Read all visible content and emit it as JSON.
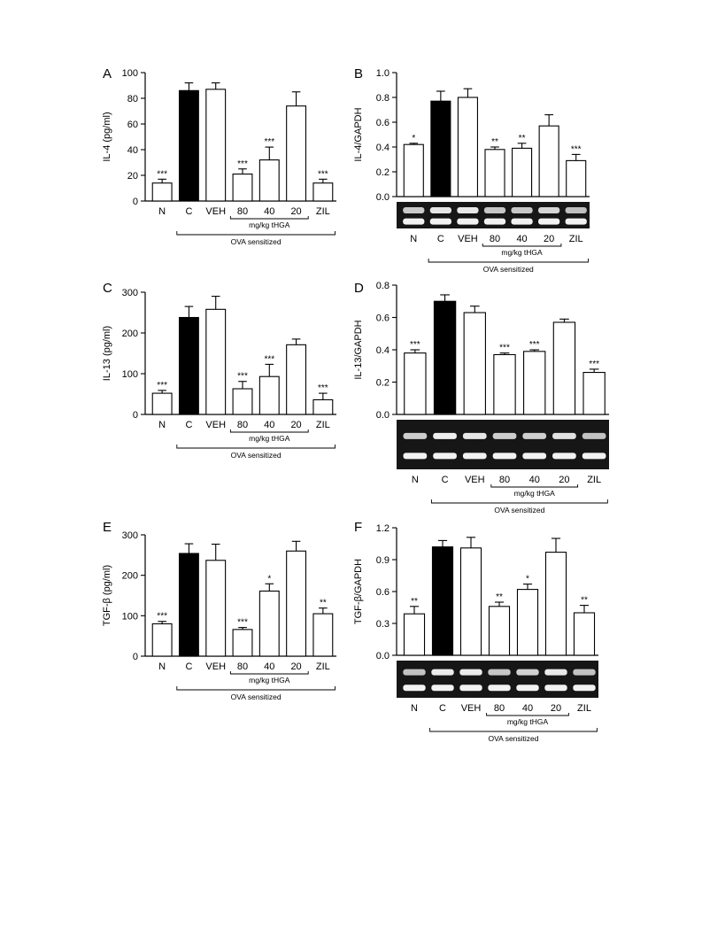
{
  "chart_data": [
    {
      "type": "bar",
      "panel": "A",
      "categories": [
        "N",
        "C",
        "VEH",
        "80",
        "40",
        "20",
        "ZIL"
      ],
      "values": [
        14,
        86,
        87,
        21,
        32,
        74,
        14
      ],
      "errors": [
        3,
        6,
        5,
        4,
        10,
        11,
        3
      ],
      "significance": [
        "***",
        "",
        "",
        "***",
        "***",
        "",
        "***"
      ],
      "filled": [
        false,
        true,
        false,
        false,
        false,
        false,
        false
      ],
      "ylabel": "IL-4 (pg/ml)",
      "ylim": [
        0,
        100
      ],
      "yticks": [
        "0",
        "20",
        "40",
        "60",
        "80",
        "100"
      ],
      "dose_label": "mg/kg tHGA",
      "group_label": "OVA sensitized",
      "gel": false
    },
    {
      "type": "bar",
      "panel": "B",
      "categories": [
        "N",
        "C",
        "VEH",
        "80",
        "40",
        "20",
        "ZIL"
      ],
      "values": [
        0.42,
        0.77,
        0.8,
        0.38,
        0.39,
        0.57,
        0.29
      ],
      "errors": [
        0.01,
        0.08,
        0.07,
        0.02,
        0.04,
        0.09,
        0.05
      ],
      "significance": [
        "*",
        "",
        "",
        "**",
        "**",
        "",
        "***"
      ],
      "filled": [
        false,
        true,
        false,
        false,
        false,
        false,
        false
      ],
      "ylabel": "IL-4/GAPDH",
      "ylim": [
        0,
        1.0
      ],
      "yticks": [
        "0.0",
        "0.2",
        "0.4",
        "0.6",
        "0.8",
        "1.0"
      ],
      "dose_label": "mg/kg tHGA",
      "group_label": "OVA sensitized",
      "gel": true
    },
    {
      "type": "bar",
      "panel": "C",
      "categories": [
        "N",
        "C",
        "VEH",
        "80",
        "40",
        "20",
        "ZIL"
      ],
      "values": [
        52,
        238,
        258,
        63,
        93,
        171,
        36
      ],
      "errors": [
        7,
        27,
        32,
        18,
        30,
        14,
        16
      ],
      "significance": [
        "***",
        "",
        "",
        "***",
        "***",
        "",
        "***"
      ],
      "filled": [
        false,
        true,
        false,
        false,
        false,
        false,
        false
      ],
      "ylabel": "IL-13 (pg/ml)",
      "ylim": [
        0,
        300
      ],
      "yticks": [
        "0",
        "100",
        "200",
        "300"
      ],
      "dose_label": "mg/kg tHGA",
      "group_label": "OVA sensitized",
      "gel": false
    },
    {
      "type": "bar",
      "panel": "D",
      "categories": [
        "N",
        "C",
        "VEH",
        "80",
        "40",
        "20",
        "ZIL"
      ],
      "values": [
        0.38,
        0.7,
        0.63,
        0.37,
        0.39,
        0.57,
        0.26
      ],
      "errors": [
        0.02,
        0.04,
        0.04,
        0.01,
        0.01,
        0.02,
        0.02
      ],
      "significance": [
        "***",
        "",
        "",
        "***",
        "***",
        "",
        "***"
      ],
      "filled": [
        false,
        true,
        false,
        false,
        false,
        false,
        false
      ],
      "ylabel": "IL-13/GAPDH",
      "ylim": [
        0,
        0.8
      ],
      "yticks": [
        "0.0",
        "0.2",
        "0.4",
        "0.6",
        "0.8"
      ],
      "dose_label": "mg/kg tHGA",
      "group_label": "OVA sensitized",
      "gel": true
    },
    {
      "type": "bar",
      "panel": "E",
      "categories": [
        "N",
        "C",
        "VEH",
        "80",
        "40",
        "20",
        "ZIL"
      ],
      "values": [
        80,
        254,
        237,
        66,
        161,
        260,
        105
      ],
      "errors": [
        6,
        24,
        40,
        5,
        18,
        24,
        14
      ],
      "significance": [
        "***",
        "",
        "",
        "***",
        "*",
        "",
        "**"
      ],
      "filled": [
        false,
        true,
        false,
        false,
        false,
        false,
        false
      ],
      "ylabel": "TGF-β (pg/ml)",
      "ylim": [
        0,
        300
      ],
      "yticks": [
        "0",
        "100",
        "200",
        "300"
      ],
      "dose_label": "mg/kg tHGA",
      "group_label": "OVA sensitized",
      "gel": false
    },
    {
      "type": "bar",
      "panel": "F",
      "categories": [
        "N",
        "C",
        "VEH",
        "80",
        "40",
        "20",
        "ZIL"
      ],
      "values": [
        0.39,
        1.02,
        1.01,
        0.46,
        0.62,
        0.97,
        0.4
      ],
      "errors": [
        0.07,
        0.06,
        0.1,
        0.04,
        0.05,
        0.13,
        0.07
      ],
      "significance": [
        "**",
        "",
        "",
        "**",
        "*",
        "",
        "**"
      ],
      "filled": [
        false,
        true,
        false,
        false,
        false,
        false,
        false
      ],
      "ylabel": "TGF-β/GAPDH",
      "ylim": [
        0,
        1.2
      ],
      "yticks": [
        "0.0",
        "0.3",
        "0.6",
        "0.9",
        "1.2"
      ],
      "dose_label": "mg/kg tHGA",
      "group_label": "OVA sensitized",
      "gel": true
    }
  ]
}
